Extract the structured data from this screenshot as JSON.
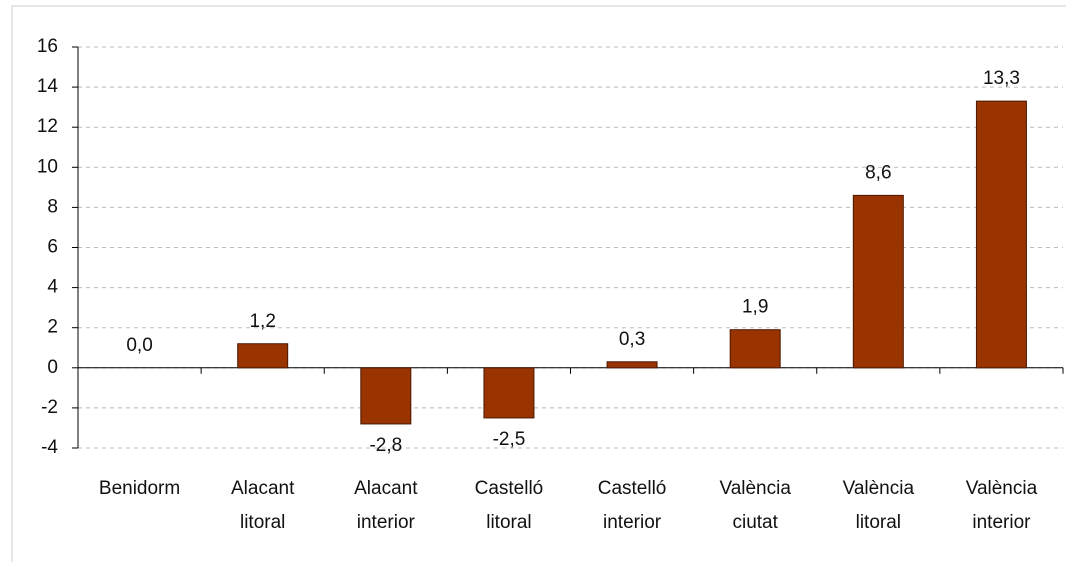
{
  "chart_data": {
    "type": "bar",
    "categories": [
      "Benidorm",
      "Alacant litoral",
      "Alacant interior",
      "Castelló litoral",
      "Castelló interior",
      "València ciutat",
      "València litoral",
      "València interior"
    ],
    "values": [
      0.0,
      1.2,
      -2.8,
      -2.5,
      0.3,
      1.9,
      8.6,
      13.3
    ],
    "value_labels": [
      "0,0",
      "1,2",
      "-2,8",
      "-2,5",
      "0,3",
      "1,9",
      "8,6",
      "13,3"
    ],
    "color": "#993300",
    "ylim": [
      -4,
      16
    ],
    "yticks": [
      -4,
      -2,
      0,
      2,
      4,
      6,
      8,
      10,
      12,
      14,
      16
    ],
    "grid": true
  }
}
